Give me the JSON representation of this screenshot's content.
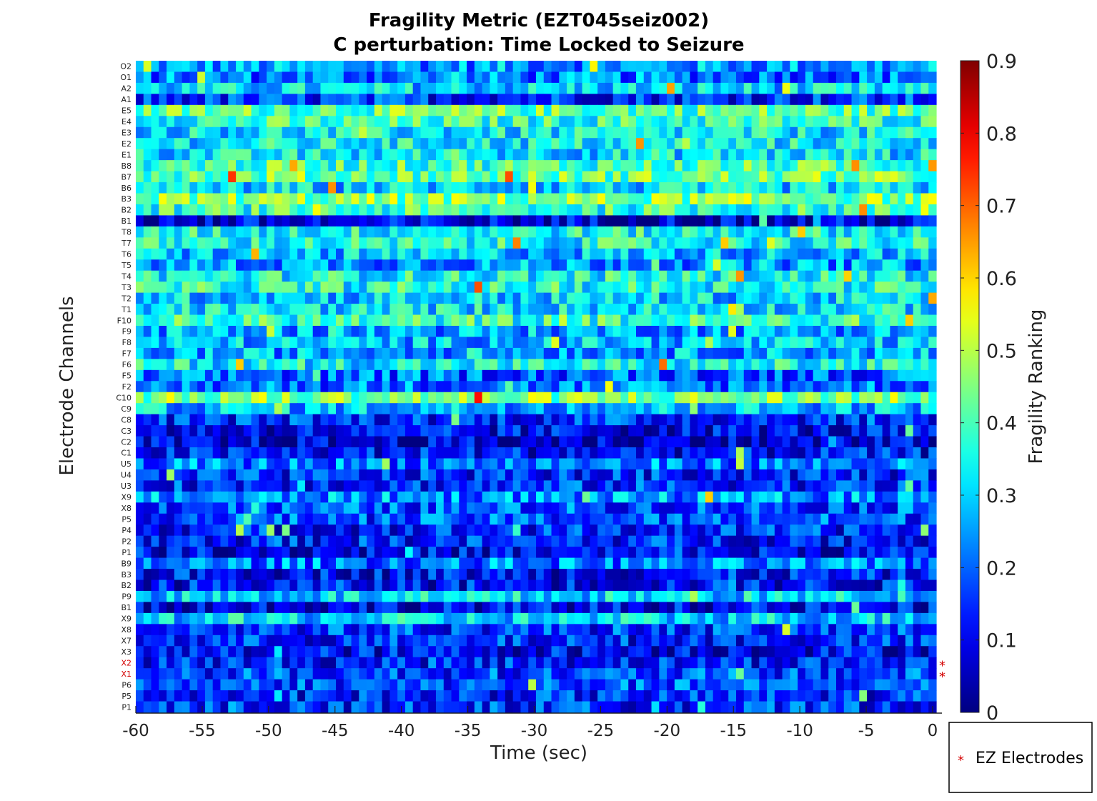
{
  "chart_data": {
    "type": "heatmap",
    "title_line1": "Fragility Metric (EZT045seiz002)",
    "title_line2": "C perturbation:  Time Locked to Seizure",
    "xlabel": "Time (sec)",
    "ylabel": "Electrode Channels",
    "xlim": [
      -60,
      0
    ],
    "x_ticks": [
      "-60",
      "-55",
      "-50",
      "-45",
      "-40",
      "-35",
      "-30",
      "-25",
      "-20",
      "-15",
      "-10",
      "-5",
      "0"
    ],
    "channels": [
      "O2",
      "O1",
      "A2",
      "A1",
      "E5",
      "E4",
      "E3",
      "E2",
      "E1",
      "B8",
      "B7",
      "B6",
      "B3",
      "B2",
      "B1",
      "T8",
      "T7",
      "T6",
      "T5",
      "T4",
      "T3",
      "T2",
      "T1",
      "F10",
      "F9",
      "F8",
      "F7",
      "F6",
      "F5",
      "F2",
      "C10",
      "C9",
      "C8",
      "C3",
      "C2",
      "C1",
      "U5",
      "U4",
      "U3",
      "X9",
      "X8",
      "P5",
      "P4",
      "P2",
      "P1",
      "B9",
      "B3",
      "B2",
      "P9",
      "B1",
      "X9",
      "X8",
      "X7",
      "X3",
      "X2",
      "X1",
      "P6",
      "P5",
      "P1"
    ],
    "row_mean_values": [
      0.25,
      0.22,
      0.3,
      0.15,
      0.42,
      0.38,
      0.32,
      0.33,
      0.32,
      0.4,
      0.43,
      0.3,
      0.45,
      0.38,
      0.08,
      0.35,
      0.35,
      0.28,
      0.25,
      0.35,
      0.36,
      0.3,
      0.32,
      0.38,
      0.26,
      0.28,
      0.26,
      0.34,
      0.2,
      0.22,
      0.45,
      0.28,
      0.15,
      0.1,
      0.07,
      0.12,
      0.22,
      0.14,
      0.15,
      0.24,
      0.18,
      0.18,
      0.14,
      0.14,
      0.1,
      0.22,
      0.12,
      0.12,
      0.3,
      0.1,
      0.3,
      0.16,
      0.14,
      0.11,
      0.14,
      0.17,
      0.18,
      0.14,
      0.15
    ],
    "ez_electrodes": [
      "X2",
      "X1"
    ],
    "ez_marker": "*",
    "legend_label": "EZ Electrodes",
    "colorbar": {
      "label": "Fragility Ranking",
      "range": [
        0,
        0.9
      ],
      "ticks": [
        "0",
        "0.1",
        "0.2",
        "0.3",
        "0.4",
        "0.5",
        "0.6",
        "0.7",
        "0.8",
        "0.9"
      ],
      "colormap": "jet"
    }
  }
}
